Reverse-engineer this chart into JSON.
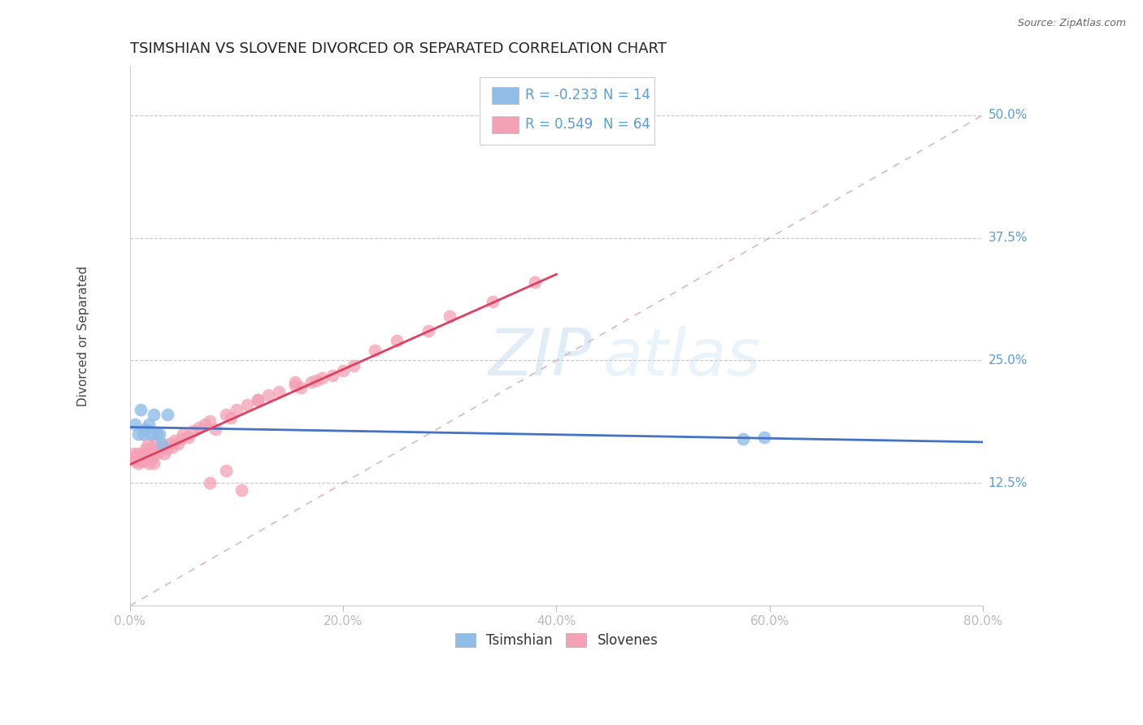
{
  "title": "TSIMSHIAN VS SLOVENE DIVORCED OR SEPARATED CORRELATION CHART",
  "source_text": "Source: ZipAtlas.com",
  "ylabel": "Divorced or Separated",
  "xmin": 0.0,
  "xmax": 0.8,
  "ymin": 0.0,
  "ymax": 0.55,
  "yticks": [
    0.125,
    0.25,
    0.375,
    0.5
  ],
  "ytick_labels": [
    "12.5%",
    "25.0%",
    "37.5%",
    "50.0%"
  ],
  "xticks": [
    0.0,
    0.2,
    0.4,
    0.6,
    0.8
  ],
  "xtick_labels": [
    "0.0%",
    "20.0%",
    "40.0%",
    "60.0%",
    "80.0%"
  ],
  "tsimshian_color": "#90bce8",
  "slovene_color": "#f4a0b5",
  "tsimshian_line_color": "#4472c4",
  "slovene_line_color": "#e04060",
  "diag_line_color": "#d8b0b8",
  "legend_R_tsimshian": "-0.233",
  "legend_N_tsimshian": "14",
  "legend_R_slovene": "0.549",
  "legend_N_slovene": "64",
  "watermark_zip": "ZIP",
  "watermark_atlas": "atlas",
  "tsimshian_x": [
    0.005,
    0.008,
    0.01,
    0.012,
    0.015,
    0.018,
    0.02,
    0.022,
    0.025,
    0.028,
    0.03,
    0.035,
    0.575,
    0.595
  ],
  "tsimshian_y": [
    0.185,
    0.175,
    0.2,
    0.175,
    0.18,
    0.185,
    0.175,
    0.195,
    0.175,
    0.175,
    0.165,
    0.195,
    0.17,
    0.172
  ],
  "slovene_x": [
    0.003,
    0.004,
    0.005,
    0.006,
    0.007,
    0.008,
    0.009,
    0.01,
    0.011,
    0.012,
    0.013,
    0.014,
    0.015,
    0.016,
    0.017,
    0.018,
    0.019,
    0.02,
    0.021,
    0.022,
    0.023,
    0.025,
    0.027,
    0.03,
    0.032,
    0.035,
    0.037,
    0.04,
    0.042,
    0.045,
    0.048,
    0.05,
    0.055,
    0.06,
    0.065,
    0.07,
    0.075,
    0.08,
    0.09,
    0.095,
    0.1,
    0.11,
    0.12,
    0.13,
    0.14,
    0.155,
    0.16,
    0.17,
    0.175,
    0.18,
    0.19,
    0.21,
    0.23,
    0.25,
    0.28,
    0.3,
    0.34,
    0.38,
    0.2,
    0.155,
    0.12,
    0.105,
    0.09,
    0.075
  ],
  "slovene_y": [
    0.155,
    0.15,
    0.148,
    0.152,
    0.155,
    0.145,
    0.15,
    0.148,
    0.152,
    0.155,
    0.148,
    0.15,
    0.16,
    0.155,
    0.165,
    0.145,
    0.155,
    0.16,
    0.15,
    0.145,
    0.168,
    0.155,
    0.158,
    0.162,
    0.155,
    0.16,
    0.165,
    0.162,
    0.168,
    0.165,
    0.17,
    0.175,
    0.172,
    0.178,
    0.182,
    0.185,
    0.188,
    0.18,
    0.195,
    0.192,
    0.2,
    0.205,
    0.21,
    0.215,
    0.218,
    0.225,
    0.222,
    0.228,
    0.23,
    0.232,
    0.235,
    0.245,
    0.26,
    0.27,
    0.28,
    0.295,
    0.31,
    0.33,
    0.24,
    0.228,
    0.21,
    0.118,
    0.138,
    0.125
  ],
  "title_fontsize": 13,
  "axis_label_fontsize": 11,
  "tick_fontsize": 11,
  "legend_fontsize": 12,
  "background_color": "#ffffff",
  "grid_color": "#c8c8c8"
}
